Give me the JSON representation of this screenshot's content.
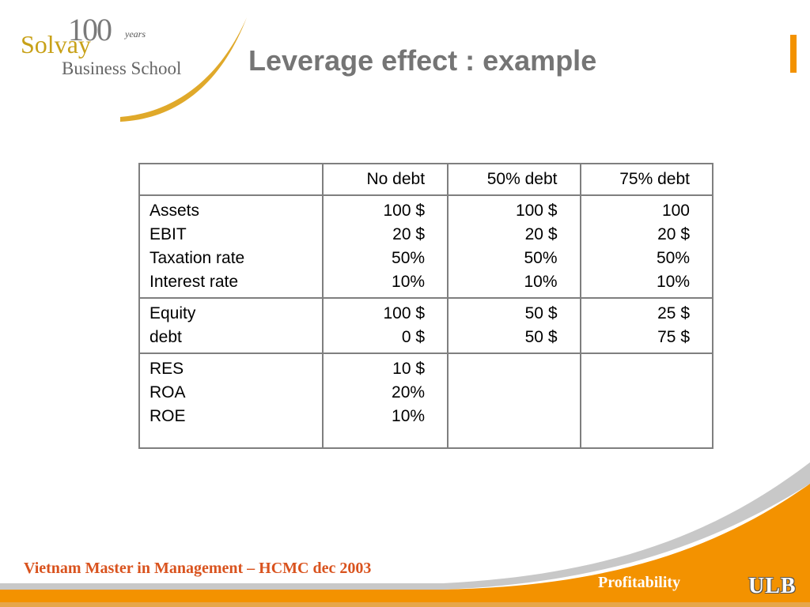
{
  "logo": {
    "hundred": "100",
    "years": "years",
    "solvay": "Solvay",
    "school": "Business School"
  },
  "title": "Leverage effect : example",
  "table": {
    "headers": [
      "",
      "No debt",
      "50% debt",
      "75% debt"
    ],
    "groups": [
      {
        "labels": [
          "Assets",
          "EBIT",
          "Taxation rate",
          "Interest rate"
        ],
        "columns": [
          [
            "100 $",
            "20 $",
            "50%",
            "10%"
          ],
          [
            "100 $",
            "20 $",
            "50%",
            "10%"
          ],
          [
            "100",
            "20 $",
            "50%",
            "10%"
          ]
        ]
      },
      {
        "labels": [
          "Equity",
          "debt"
        ],
        "columns": [
          [
            "100 $",
            "0 $"
          ],
          [
            "50 $",
            "50 $"
          ],
          [
            "25 $",
            "75 $"
          ]
        ]
      },
      {
        "labels": [
          "RES",
          "ROA",
          "ROE"
        ],
        "columns": [
          [
            "10 $",
            "20%",
            "10%"
          ],
          [],
          []
        ]
      }
    ]
  },
  "footer": {
    "event": "Vietnam Master in Management – HCMC dec 2003",
    "section": "Profitability",
    "brand": "ULB"
  },
  "colors": {
    "accent_orange": "#f39200",
    "footer_text": "#d9531e",
    "logo_gold": "#c8a118",
    "title_gray": "#757575"
  }
}
